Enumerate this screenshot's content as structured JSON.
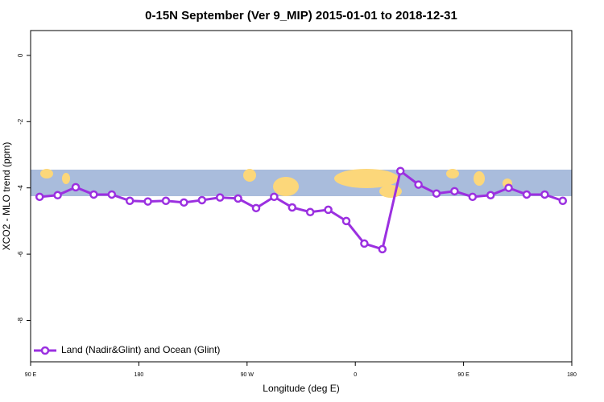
{
  "chart_data": {
    "type": "line",
    "title": "0-15N September (Ver 9_MIP)   2015-01-01 to 2018-12-31",
    "xlabel": "Longitude (deg E)",
    "ylabel": "XCO2 - MLO trend (ppm)",
    "x": [
      97.5,
      112.5,
      127.5,
      142.5,
      157.5,
      172.5,
      187.5,
      202.5,
      217.5,
      232.5,
      247.5,
      262.5,
      277.5,
      292.5,
      307.5,
      322.5,
      337.5,
      352.5,
      367.5,
      382.5,
      397.5,
      412.5,
      427.5,
      442.5,
      457.5,
      472.5,
      487.5,
      502.5,
      517.5,
      532.5
    ],
    "series": [
      {
        "name": "Land (Nadir&Glint) and Ocean (Glint)",
        "color": "#9b30e0",
        "values": [
          -4.27,
          -4.22,
          -3.98,
          -4.2,
          -4.2,
          -4.39,
          -4.41,
          -4.39,
          -4.44,
          -4.37,
          -4.29,
          -4.32,
          -4.61,
          -4.27,
          -4.59,
          -4.73,
          -4.66,
          -5.0,
          -5.68,
          -5.85,
          -3.49,
          -3.9,
          -4.17,
          -4.1,
          -4.27,
          -4.22,
          -4.0,
          -4.2,
          -4.2,
          -4.39
        ]
      }
    ],
    "xlim": [
      90,
      540
    ],
    "xticks": [
      {
        "value": 90,
        "label": "90 E"
      },
      180,
      {
        "value": 270,
        "label": "90 W"
      },
      {
        "value": 360,
        "label": "0"
      },
      {
        "value": 450,
        "label": "90 E"
      },
      {
        "value": 540,
        "label": "180"
      }
    ],
    "ylim": [
      -9.25,
      0.75
    ],
    "yticks": [
      0,
      -2,
      -4,
      -6,
      -8
    ],
    "legend": "bottom-left"
  }
}
